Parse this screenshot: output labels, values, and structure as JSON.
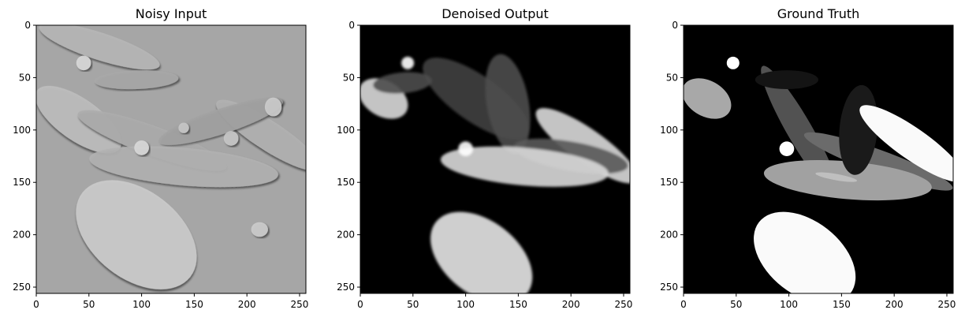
{
  "chart_data": [
    {
      "type": "image",
      "title": "Noisy Input",
      "xticks": [
        0,
        50,
        100,
        150,
        200,
        250
      ],
      "yticks": [
        0,
        50,
        100,
        150,
        200,
        250
      ],
      "xlim": [
        0,
        256
      ],
      "ylim": [
        256,
        0
      ],
      "image_size": [
        256,
        256
      ],
      "colormap": "gray",
      "render": "emboss",
      "ellipses": [
        {
          "cx": 60,
          "cy": 20,
          "rx": 60,
          "ry": 13,
          "angle": 18,
          "v": 0.72
        },
        {
          "cx": 95,
          "cy": 52,
          "rx": 40,
          "ry": 9,
          "angle": -2,
          "v": 0.66
        },
        {
          "cx": 40,
          "cy": 90,
          "rx": 48,
          "ry": 20,
          "angle": 35,
          "v": 0.75
        },
        {
          "cx": 110,
          "cy": 110,
          "rx": 75,
          "ry": 14,
          "angle": 20,
          "v": 0.68
        },
        {
          "cx": 220,
          "cy": 105,
          "rx": 58,
          "ry": 14,
          "angle": 33,
          "v": 0.7
        },
        {
          "cx": 175,
          "cy": 92,
          "rx": 62,
          "ry": 12,
          "angle": -18,
          "v": 0.64
        },
        {
          "cx": 140,
          "cy": 135,
          "rx": 90,
          "ry": 18,
          "angle": 5,
          "v": 0.7
        },
        {
          "cx": 95,
          "cy": 200,
          "rx": 65,
          "ry": 42,
          "angle": 38,
          "v": 0.8
        },
        {
          "cx": 45,
          "cy": 36,
          "rx": 7,
          "ry": 7,
          "angle": 0,
          "v": 0.85
        },
        {
          "cx": 100,
          "cy": 117,
          "rx": 7,
          "ry": 7,
          "angle": 0,
          "v": 0.85
        },
        {
          "cx": 225,
          "cy": 78,
          "rx": 8,
          "ry": 9,
          "angle": 0,
          "v": 0.8
        },
        {
          "cx": 212,
          "cy": 195,
          "rx": 8,
          "ry": 7,
          "angle": 0,
          "v": 0.8
        },
        {
          "cx": 185,
          "cy": 108,
          "rx": 7,
          "ry": 7,
          "angle": 0,
          "v": 0.78
        },
        {
          "cx": 140,
          "cy": 98,
          "rx": 5,
          "ry": 5,
          "angle": 0,
          "v": 0.78
        }
      ]
    },
    {
      "type": "image",
      "title": "Denoised Output",
      "xticks": [
        0,
        50,
        100,
        150,
        200,
        250
      ],
      "yticks": [
        0,
        50,
        100,
        150,
        200,
        250
      ],
      "xlim": [
        0,
        256
      ],
      "ylim": [
        256,
        0
      ],
      "image_size": [
        256,
        256
      ],
      "colormap": "gray",
      "render": "blur",
      "ellipses": [
        {
          "cx": 22,
          "cy": 70,
          "rx": 25,
          "ry": 17,
          "angle": 30,
          "v": 0.85
        },
        {
          "cx": 215,
          "cy": 115,
          "rx": 58,
          "ry": 16,
          "angle": 35,
          "v": 0.85
        },
        {
          "cx": 110,
          "cy": 70,
          "rx": 60,
          "ry": 22,
          "angle": 35,
          "v": 0.25
        },
        {
          "cx": 140,
          "cy": 75,
          "rx": 20,
          "ry": 48,
          "angle": -10,
          "v": 0.3
        },
        {
          "cx": 200,
          "cy": 125,
          "rx": 55,
          "ry": 14,
          "angle": 10,
          "v": 0.35
        },
        {
          "cx": 40,
          "cy": 55,
          "rx": 28,
          "ry": 10,
          "angle": -5,
          "v": 0.3
        },
        {
          "cx": 156,
          "cy": 135,
          "rx": 80,
          "ry": 18,
          "angle": 5,
          "v": 0.85
        },
        {
          "cx": 100,
          "cy": 118,
          "rx": 7,
          "ry": 7,
          "angle": 0,
          "v": 1.0
        },
        {
          "cx": 45,
          "cy": 36,
          "rx": 6,
          "ry": 6,
          "angle": 0,
          "v": 1.0
        },
        {
          "cx": 115,
          "cy": 222,
          "rx": 55,
          "ry": 35,
          "angle": 38,
          "v": 0.9
        }
      ]
    },
    {
      "type": "image",
      "title": "Ground Truth",
      "xticks": [
        0,
        50,
        100,
        150,
        200,
        250
      ],
      "yticks": [
        0,
        50,
        100,
        150,
        200,
        250
      ],
      "xlim": [
        0,
        256
      ],
      "ylim": [
        256,
        0
      ],
      "image_size": [
        256,
        256
      ],
      "colormap": "gray",
      "render": "flat",
      "ellipses": [
        {
          "cx": 22,
          "cy": 70,
          "rx": 25,
          "ry": 17,
          "angle": 30,
          "v": 0.66
        },
        {
          "cx": 110,
          "cy": 100,
          "rx": 70,
          "ry": 12,
          "angle": 60,
          "v": 0.32
        },
        {
          "cx": 98,
          "cy": 52,
          "rx": 30,
          "ry": 9,
          "angle": 0,
          "v": 0.08
        },
        {
          "cx": 185,
          "cy": 130,
          "rx": 75,
          "ry": 11,
          "angle": 20,
          "v": 0.42
        },
        {
          "cx": 156,
          "cy": 148,
          "rx": 80,
          "ry": 18,
          "angle": 5,
          "v": 0.63
        },
        {
          "cx": 145,
          "cy": 145,
          "rx": 20,
          "ry": 3,
          "angle": 10,
          "v": 0.75
        },
        {
          "cx": 166,
          "cy": 100,
          "rx": 18,
          "ry": 43,
          "angle": 5,
          "v": 0.1
        },
        {
          "cx": 217,
          "cy": 113,
          "rx": 60,
          "ry": 15,
          "angle": 35,
          "v": 0.98
        },
        {
          "cx": 47,
          "cy": 36,
          "rx": 6,
          "ry": 6,
          "angle": 0,
          "v": 1.0
        },
        {
          "cx": 98,
          "cy": 118,
          "rx": 7,
          "ry": 7,
          "angle": 0,
          "v": 1.0
        },
        {
          "cx": 115,
          "cy": 222,
          "rx": 55,
          "ry": 35,
          "angle": 38,
          "v": 0.98
        }
      ]
    }
  ]
}
